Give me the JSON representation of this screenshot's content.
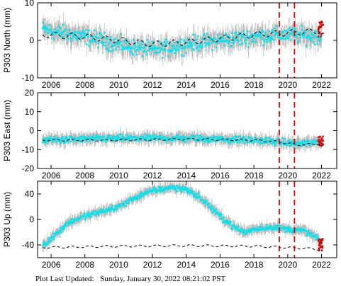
{
  "footer": {
    "label": "Plot Last Updated:",
    "timestamp": "Sunday, January 30, 2022 08:21:02 PST"
  },
  "colors": {
    "data_points": "#00e5ee",
    "error_bars": "#b8b8b8",
    "recent_points": "#e00000",
    "model_line": "#000000",
    "event_lines": "#e00000"
  },
  "chart_data": [
    {
      "type": "scatter",
      "ylabel": "P303 North (mm)",
      "xlim": [
        2005.2,
        2022.9
      ],
      "ylim": [
        -10,
        10
      ],
      "yticks": [
        -10,
        0,
        10
      ],
      "xticks": [
        2006,
        2008,
        2010,
        2012,
        2014,
        2016,
        2018,
        2020,
        2022
      ],
      "event_lines": [
        2019.5,
        2020.4
      ],
      "trend": [
        [
          2005.5,
          3
        ],
        [
          2006.5,
          2
        ],
        [
          2008,
          1
        ],
        [
          2010,
          -1
        ],
        [
          2011,
          -2
        ],
        [
          2012,
          -2.5
        ],
        [
          2013,
          -2
        ],
        [
          2014,
          -1
        ],
        [
          2016,
          0
        ],
        [
          2018,
          1
        ],
        [
          2019.5,
          1.5
        ],
        [
          2020,
          1.5
        ],
        [
          2022,
          1
        ]
      ],
      "noise": 1.8,
      "error": 2.5,
      "model": [
        [
          2005.5,
          1.5
        ],
        [
          2008,
          1
        ],
        [
          2010,
          0
        ],
        [
          2012,
          -1
        ],
        [
          2014,
          -0.5
        ],
        [
          2016,
          0.5
        ],
        [
          2018,
          1.5
        ],
        [
          2020,
          2
        ],
        [
          2022,
          2.5
        ]
      ],
      "model_amp": 0.8,
      "recent": {
        "x_start": 2021.8,
        "x_end": 2022.1,
        "y_min": 1,
        "y_max": 5
      }
    },
    {
      "type": "scatter",
      "ylabel": "P303 East (mm)",
      "xlim": [
        2005.2,
        2022.9
      ],
      "ylim": [
        -20,
        20
      ],
      "yticks": [
        -20,
        -10,
        0,
        10,
        20
      ],
      "xticks": [
        2006,
        2008,
        2010,
        2012,
        2014,
        2016,
        2018,
        2020,
        2022
      ],
      "event_lines": [
        2019.5,
        2020.4
      ],
      "trend": [
        [
          2005.5,
          -5
        ],
        [
          2010,
          -4
        ],
        [
          2014,
          -4
        ],
        [
          2018,
          -5
        ],
        [
          2019.5,
          -6
        ],
        [
          2020.5,
          -7
        ],
        [
          2022,
          -6
        ]
      ],
      "noise": 1.5,
      "error": 3,
      "model": [
        [
          2005.5,
          -5
        ],
        [
          2010,
          -5
        ],
        [
          2014,
          -4.5
        ],
        [
          2018,
          -5
        ],
        [
          2019.5,
          -6
        ],
        [
          2020.5,
          -7.5
        ],
        [
          2022,
          -7
        ]
      ],
      "model_amp": 0.5,
      "recent": {
        "x_start": 2021.8,
        "x_end": 2022.1,
        "y_min": -8,
        "y_max": -3
      }
    },
    {
      "type": "scatter",
      "ylabel": "P303 Up (mm)",
      "xlim": [
        2005.2,
        2022.9
      ],
      "ylim": [
        -60,
        60
      ],
      "yticks": [
        -40,
        0,
        40
      ],
      "xticks": [
        2006,
        2008,
        2010,
        2012,
        2014,
        2016,
        2018,
        2020,
        2022
      ],
      "event_lines": [
        2019.5,
        2020.4
      ],
      "trend": [
        [
          2005.5,
          -40
        ],
        [
          2006,
          -30
        ],
        [
          2007,
          -5
        ],
        [
          2008,
          5
        ],
        [
          2010,
          20
        ],
        [
          2011,
          35
        ],
        [
          2012,
          45
        ],
        [
          2013,
          50
        ],
        [
          2014,
          48
        ],
        [
          2015,
          30
        ],
        [
          2016,
          5
        ],
        [
          2017,
          -15
        ],
        [
          2017.5,
          -20
        ],
        [
          2018,
          -15
        ],
        [
          2019,
          -12
        ],
        [
          2020,
          -15
        ],
        [
          2021,
          -18
        ],
        [
          2021.8,
          -30
        ],
        [
          2022,
          -45
        ]
      ],
      "noise": 4,
      "error": 8,
      "model": [
        [
          2005.5,
          -44
        ],
        [
          2010,
          -42
        ],
        [
          2014,
          -41
        ],
        [
          2018,
          -42
        ],
        [
          2020,
          -44
        ],
        [
          2022,
          -47
        ]
      ],
      "model_amp": 1.5,
      "recent": {
        "x_start": 2021.8,
        "x_end": 2022.1,
        "y_min": -50,
        "y_max": -30
      }
    }
  ]
}
